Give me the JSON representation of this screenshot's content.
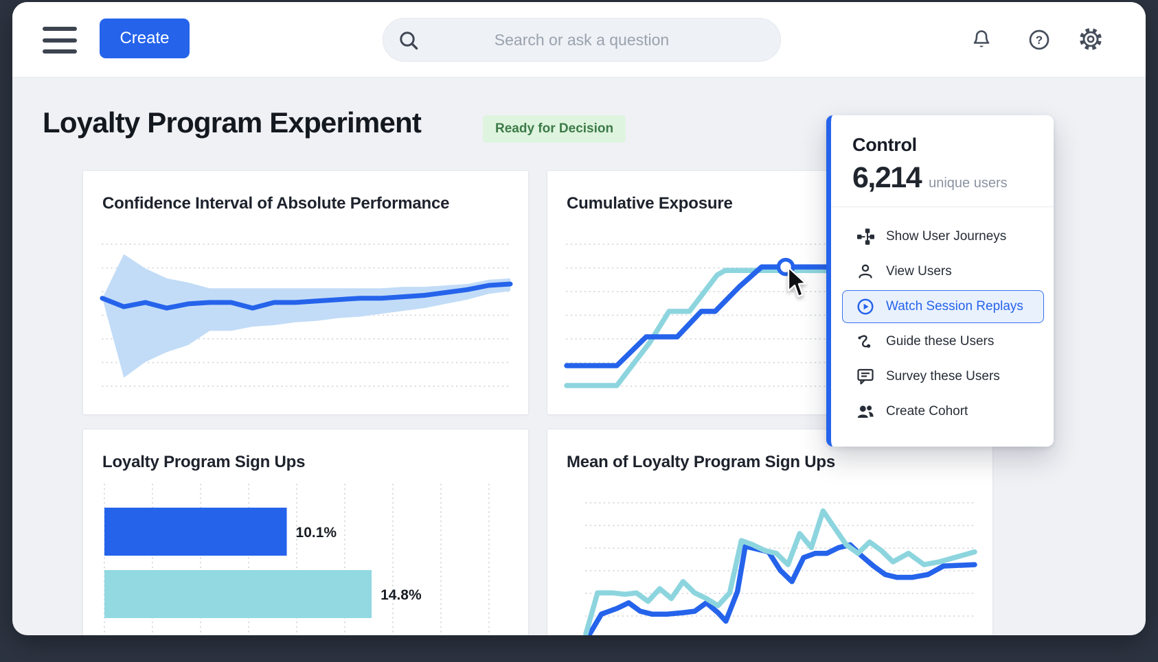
{
  "topbar": {
    "create_label": "Create",
    "search_placeholder": "Search or ask a question"
  },
  "page": {
    "title": "Loyalty Program Experiment",
    "status_badge": "Ready for Decision"
  },
  "popup": {
    "variant_label": "Control",
    "value": "6,214",
    "value_suffix": "unique users",
    "items": [
      {
        "label": "Show User Journeys",
        "icon": "journeys-icon",
        "active": false
      },
      {
        "label": "View Users",
        "icon": "user-icon",
        "active": false
      },
      {
        "label": "Watch Session Replays",
        "icon": "play-circle-icon",
        "active": true
      },
      {
        "label": "Guide these Users",
        "icon": "guide-icon",
        "active": false
      },
      {
        "label": "Survey these Users",
        "icon": "survey-icon",
        "active": false
      },
      {
        "label": "Create Cohort",
        "icon": "cohort-icon",
        "active": false
      }
    ]
  },
  "colors": {
    "accent": "#2563eb",
    "teal": "#8dd5de",
    "teal_bar": "#92d9e1",
    "band": "#c2dcf7",
    "frame": "#2d3441",
    "grid": "#d6dade",
    "label_text": "#171c24"
  },
  "chart_data": [
    {
      "id": "ci",
      "type": "area-line",
      "title": "Confidence Interval of Absolute Performance",
      "xlabel": "",
      "ylabel": "",
      "axis_labels": "none",
      "grid": "horizontal-dotted",
      "ylim": [
        0,
        10
      ],
      "series": {
        "estimate": [
          6.2,
          5.6,
          5.9,
          5.5,
          5.8,
          5.9,
          5.9,
          5.5,
          5.9,
          5.9,
          6.0,
          6.1,
          6.2,
          6.2,
          6.3,
          6.4,
          6.6,
          6.8,
          7.1,
          7.2
        ],
        "upper": [
          6.2,
          9.3,
          8.3,
          7.6,
          7.3,
          6.9,
          6.9,
          6.9,
          6.9,
          6.9,
          6.9,
          6.9,
          6.9,
          6.9,
          7.0,
          7.0,
          7.1,
          7.2,
          7.5,
          7.6
        ],
        "lower": [
          6.2,
          0.6,
          1.7,
          2.4,
          2.9,
          3.9,
          3.9,
          4.2,
          4.3,
          4.5,
          4.6,
          4.8,
          4.9,
          5.1,
          5.3,
          5.5,
          5.8,
          6.1,
          6.5,
          6.7
        ]
      }
    },
    {
      "id": "exposure",
      "type": "line",
      "title": "Cumulative Exposure",
      "xlabel": "",
      "ylabel": "",
      "axis_labels": "none",
      "grid": "horizontal-dotted",
      "units": "percent-of-plot [x,y]",
      "series": [
        {
          "name": "control",
          "color": "accent",
          "points": [
            [
              0,
              14.5
            ],
            [
              12.3,
              14.5
            ],
            [
              19.5,
              34.8
            ],
            [
              27.1,
              34.8
            ],
            [
              33,
              52.7
            ],
            [
              36.4,
              52.7
            ],
            [
              42.3,
              70
            ],
            [
              47.8,
              84
            ],
            [
              53.7,
              84
            ],
            [
              100,
              84
            ]
          ],
          "marker_index": 8
        },
        {
          "name": "variant",
          "color": "teal",
          "points": [
            [
              0,
              0.5
            ],
            [
              12.3,
              0.5
            ],
            [
              20.4,
              30.9
            ],
            [
              25.1,
              52.7
            ],
            [
              30.1,
              52.7
            ],
            [
              36.9,
              78.3
            ],
            [
              38.9,
              81.6
            ],
            [
              100,
              81.2
            ]
          ]
        }
      ]
    },
    {
      "id": "signups",
      "type": "bar-h",
      "title": "Loyalty Program Sign Ups",
      "xlabel": "",
      "ylabel": "",
      "grid": "vertical-dotted",
      "xmax": 21.3,
      "bars": [
        {
          "name": "control",
          "value": 10.1,
          "label": "10.1%",
          "color": "accent"
        },
        {
          "name": "variant",
          "value": 14.8,
          "label": "14.8%",
          "color": "teal_bar"
        }
      ]
    },
    {
      "id": "mean",
      "type": "line",
      "title": "Mean of Loyalty Program Sign Ups",
      "xlabel": "",
      "ylabel": "",
      "axis_labels": "none",
      "grid": "horizontal-dotted",
      "units": "percent-of-plot [x,y]",
      "series": [
        {
          "name": "variant",
          "color": "teal",
          "points": [
            [
              0,
              0
            ],
            [
              3,
              29
            ],
            [
              7,
              29
            ],
            [
              10,
              28
            ],
            [
              13,
              29
            ],
            [
              16,
              23
            ],
            [
              19,
              32
            ],
            [
              22,
              25
            ],
            [
              25,
              37
            ],
            [
              28,
              29
            ],
            [
              31,
              25
            ],
            [
              34,
              20
            ],
            [
              37,
              29
            ],
            [
              40,
              66
            ],
            [
              43,
              63
            ],
            [
              46,
              59
            ],
            [
              49,
              57
            ],
            [
              52,
              49
            ],
            [
              55,
              71
            ],
            [
              58,
              61
            ],
            [
              61,
              87
            ],
            [
              64,
              75
            ],
            [
              67,
              63
            ],
            [
              70,
              57
            ],
            [
              73,
              65
            ],
            [
              76,
              59
            ],
            [
              79,
              51
            ],
            [
              83,
              57
            ],
            [
              87,
              49
            ],
            [
              91,
              51
            ],
            [
              100,
              58
            ]
          ]
        },
        {
          "name": "control",
          "color": "accent",
          "points": [
            [
              1,
              0
            ],
            [
              4,
              14
            ],
            [
              8,
              18
            ],
            [
              11,
              22
            ],
            [
              14,
              16
            ],
            [
              17,
              14
            ],
            [
              21,
              14
            ],
            [
              25,
              15
            ],
            [
              28,
              16
            ],
            [
              31,
              22
            ],
            [
              34,
              15
            ],
            [
              36,
              9
            ],
            [
              39,
              30
            ],
            [
              41,
              62
            ],
            [
              44,
              60
            ],
            [
              47,
              58
            ],
            [
              50,
              45
            ],
            [
              53,
              37
            ],
            [
              56,
              54
            ],
            [
              59,
              57
            ],
            [
              62,
              57
            ],
            [
              65,
              61
            ],
            [
              68,
              63
            ],
            [
              71,
              55
            ],
            [
              74,
              48
            ],
            [
              77,
              42
            ],
            [
              80,
              40
            ],
            [
              84,
              40
            ],
            [
              88,
              42
            ],
            [
              92,
              48
            ],
            [
              100,
              49
            ]
          ]
        }
      ]
    }
  ]
}
